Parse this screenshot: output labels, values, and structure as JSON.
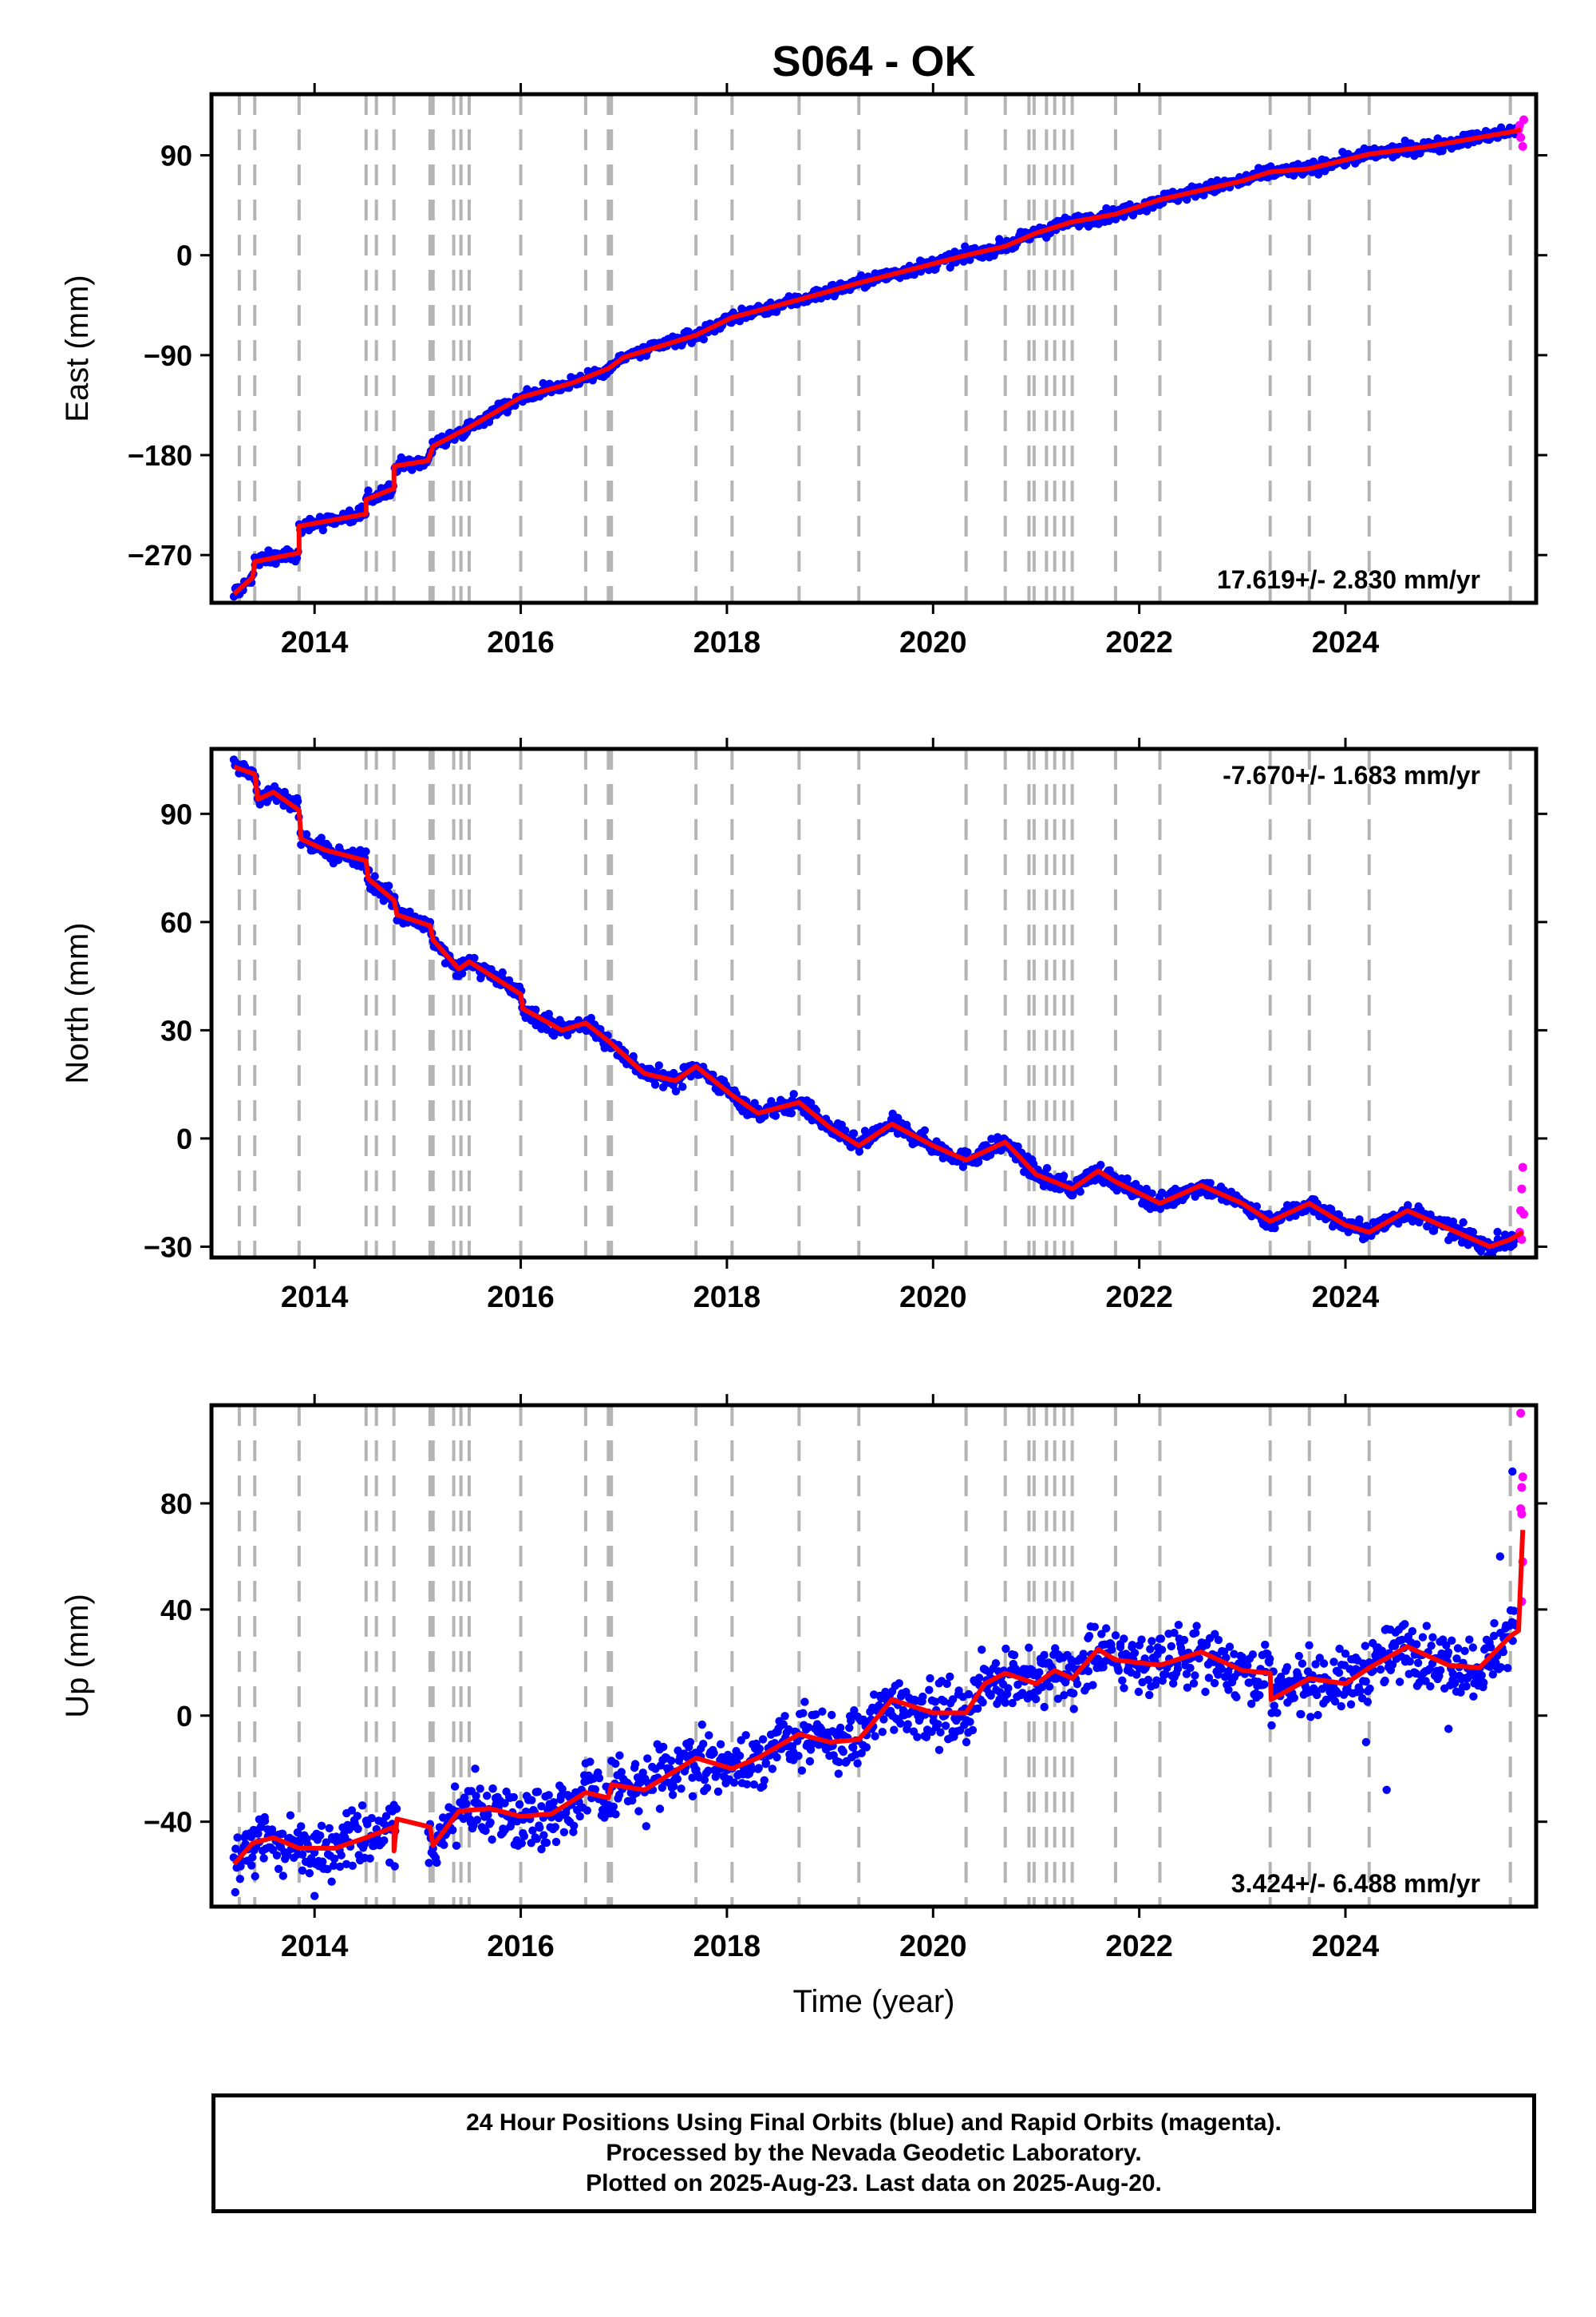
{
  "chart_data": {
    "type": "scatter",
    "title": "S064 - OK",
    "xlabel": "Time (year)",
    "xlim": [
      2013.0,
      2025.85
    ],
    "x_ticks": [
      2014,
      2016,
      2018,
      2020,
      2022,
      2024
    ],
    "x_tick_labels": [
      "2014",
      "2016",
      "2018",
      "2020",
      "2022",
      "2024"
    ],
    "series_colors": {
      "final": "#0000ff",
      "rapid": "#ff00ff",
      "model": "#ff0000",
      "event_lines": "#b4b4b4"
    },
    "event_lines": [
      2013.27,
      2013.42,
      2013.85,
      2014.5,
      2014.6,
      2014.77,
      2015.12,
      2015.15,
      2015.35,
      2015.42,
      2015.5,
      2016.0,
      2016.63,
      2016.85,
      2016.88,
      2017.7,
      2018.05,
      2018.7,
      2019.28,
      2020.32,
      2020.7,
      2020.93,
      2020.98,
      2021.1,
      2021.18,
      2021.27,
      2021.35,
      2021.77,
      2022.2,
      2023.27,
      2023.65,
      2024.23,
      2025.6
    ],
    "panels": [
      {
        "ylabel": "East (mm)",
        "ylim": [
          -313,
          145
        ],
        "y_ticks": [
          -270,
          -180,
          -90,
          0,
          90
        ],
        "y_tick_labels": [
          "−270",
          "−180",
          "−90",
          "0",
          "90"
        ],
        "rate": "17.619+/- 2.830 mm/yr",
        "rate_position": "bottom-right",
        "scatter": 3,
        "model": [
          [
            2013.22,
            -305
          ],
          [
            2013.4,
            -290
          ],
          [
            2013.42,
            -276
          ],
          [
            2013.85,
            -268
          ],
          [
            2013.85,
            -244
          ],
          [
            2014.5,
            -233
          ],
          [
            2014.5,
            -220
          ],
          [
            2014.77,
            -210
          ],
          [
            2014.77,
            -190
          ],
          [
            2015.1,
            -185
          ],
          [
            2015.15,
            -172
          ],
          [
            2015.5,
            -155
          ],
          [
            2016.0,
            -128
          ],
          [
            2016.5,
            -115
          ],
          [
            2016.85,
            -102
          ],
          [
            2017.0,
            -92
          ],
          [
            2017.7,
            -72
          ],
          [
            2018.05,
            -56
          ],
          [
            2018.7,
            -40
          ],
          [
            2019.28,
            -25
          ],
          [
            2020.32,
            0
          ],
          [
            2020.7,
            8
          ],
          [
            2021.0,
            20
          ],
          [
            2021.35,
            30
          ],
          [
            2021.77,
            37
          ],
          [
            2022.2,
            50
          ],
          [
            2023.0,
            67
          ],
          [
            2023.27,
            75
          ],
          [
            2023.65,
            78
          ],
          [
            2024.23,
            91
          ],
          [
            2024.8,
            98
          ],
          [
            2025.6,
            111
          ],
          [
            2025.7,
            113
          ]
        ],
        "rapid": [
          [
            2025.68,
            113
          ],
          [
            2025.7,
            106
          ],
          [
            2025.72,
            98
          ],
          [
            2025.73,
            122
          ],
          [
            2025.69,
            117
          ]
        ]
      },
      {
        "ylabel": "North (mm)",
        "ylim": [
          -33,
          108
        ],
        "y_ticks": [
          -30,
          0,
          30,
          60,
          90
        ],
        "y_tick_labels": [
          "−30",
          "0",
          "30",
          "60",
          "90"
        ],
        "rate": "-7.670+/- 1.683 mm/yr",
        "rate_position": "top-right",
        "scatter": 1.3,
        "model": [
          [
            2013.22,
            103
          ],
          [
            2013.42,
            101
          ],
          [
            2013.45,
            94
          ],
          [
            2013.6,
            96
          ],
          [
            2013.85,
            91
          ],
          [
            2013.87,
            83
          ],
          [
            2014.1,
            80
          ],
          [
            2014.5,
            77
          ],
          [
            2014.52,
            72
          ],
          [
            2014.77,
            66
          ],
          [
            2014.8,
            62
          ],
          [
            2015.12,
            59
          ],
          [
            2015.15,
            55
          ],
          [
            2015.4,
            47
          ],
          [
            2015.5,
            49
          ],
          [
            2016.0,
            40
          ],
          [
            2016.02,
            36
          ],
          [
            2016.4,
            30
          ],
          [
            2016.63,
            32
          ],
          [
            2016.85,
            27
          ],
          [
            2017.2,
            18
          ],
          [
            2017.5,
            16
          ],
          [
            2017.7,
            20
          ],
          [
            2018.05,
            12
          ],
          [
            2018.3,
            7
          ],
          [
            2018.7,
            10
          ],
          [
            2019.0,
            3
          ],
          [
            2019.28,
            -2
          ],
          [
            2019.6,
            4
          ],
          [
            2020.0,
            -2
          ],
          [
            2020.32,
            -6
          ],
          [
            2020.7,
            -1
          ],
          [
            2021.0,
            -10
          ],
          [
            2021.35,
            -14
          ],
          [
            2021.6,
            -9
          ],
          [
            2021.77,
            -12
          ],
          [
            2022.2,
            -18
          ],
          [
            2022.6,
            -13
          ],
          [
            2023.0,
            -18
          ],
          [
            2023.27,
            -23
          ],
          [
            2023.65,
            -18
          ],
          [
            2024.0,
            -24
          ],
          [
            2024.23,
            -26
          ],
          [
            2024.6,
            -20
          ],
          [
            2025.0,
            -25
          ],
          [
            2025.4,
            -30
          ],
          [
            2025.6,
            -28
          ],
          [
            2025.72,
            -26
          ]
        ],
        "rapid": [
          [
            2025.69,
            -26
          ],
          [
            2025.7,
            -20
          ],
          [
            2025.71,
            -14
          ],
          [
            2025.72,
            -8
          ],
          [
            2025.73,
            -21
          ],
          [
            2025.71,
            -28
          ]
        ]
      },
      {
        "ylabel": "Up (mm)",
        "ylim": [
          -72,
          117
        ],
        "y_ticks": [
          -40,
          0,
          40,
          80
        ],
        "y_tick_labels": [
          "−40",
          "0",
          "40",
          "80"
        ],
        "rate": "3.424+/- 6.488 mm/yr",
        "rate_position": "bottom-right",
        "scatter": 6,
        "model": [
          [
            2013.22,
            -56
          ],
          [
            2013.4,
            -48
          ],
          [
            2013.6,
            -46
          ],
          [
            2013.85,
            -50
          ],
          [
            2014.2,
            -50
          ],
          [
            2014.5,
            -46
          ],
          [
            2014.77,
            -42
          ],
          [
            2014.77,
            -51
          ],
          [
            2014.8,
            -39
          ],
          [
            2015.12,
            -42
          ],
          [
            2015.15,
            -49
          ],
          [
            2015.4,
            -36
          ],
          [
            2015.7,
            -35
          ],
          [
            2016.0,
            -38
          ],
          [
            2016.3,
            -37
          ],
          [
            2016.63,
            -29
          ],
          [
            2016.85,
            -31
          ],
          [
            2016.88,
            -26
          ],
          [
            2017.2,
            -28
          ],
          [
            2017.7,
            -16
          ],
          [
            2018.05,
            -20
          ],
          [
            2018.3,
            -16
          ],
          [
            2018.7,
            -7
          ],
          [
            2019.0,
            -10
          ],
          [
            2019.28,
            -9
          ],
          [
            2019.6,
            6
          ],
          [
            2020.0,
            1
          ],
          [
            2020.32,
            1
          ],
          [
            2020.5,
            12
          ],
          [
            2020.7,
            16
          ],
          [
            2021.0,
            12
          ],
          [
            2021.18,
            17
          ],
          [
            2021.35,
            14
          ],
          [
            2021.6,
            25
          ],
          [
            2021.77,
            21
          ],
          [
            2022.2,
            19
          ],
          [
            2022.6,
            24
          ],
          [
            2023.0,
            17
          ],
          [
            2023.27,
            16
          ],
          [
            2023.28,
            6
          ],
          [
            2023.65,
            14
          ],
          [
            2024.0,
            12
          ],
          [
            2024.23,
            18
          ],
          [
            2024.6,
            26
          ],
          [
            2025.0,
            19
          ],
          [
            2025.3,
            18
          ],
          [
            2025.6,
            30
          ],
          [
            2025.68,
            32
          ],
          [
            2025.72,
            70
          ]
        ],
        "rapid": [
          [
            2025.7,
            114
          ],
          [
            2025.71,
            86
          ],
          [
            2025.72,
            90
          ],
          [
            2025.7,
            78
          ],
          [
            2025.71,
            76
          ],
          [
            2025.72,
            58
          ],
          [
            2025.71,
            43
          ]
        ],
        "outliers": [
          [
            2014.0,
            -68
          ],
          [
            2024.4,
            -28
          ],
          [
            2024.2,
            -10
          ],
          [
            2025.0,
            -5
          ],
          [
            2025.5,
            60
          ],
          [
            2025.62,
            92
          ]
        ]
      }
    ],
    "caption": [
      "24 Hour Positions Using Final Orbits (blue) and Rapid Orbits (magenta).",
      "Processed by the Nevada Geodetic Laboratory.",
      "Plotted on 2025-Aug-23. Last data on 2025-Aug-20."
    ]
  }
}
